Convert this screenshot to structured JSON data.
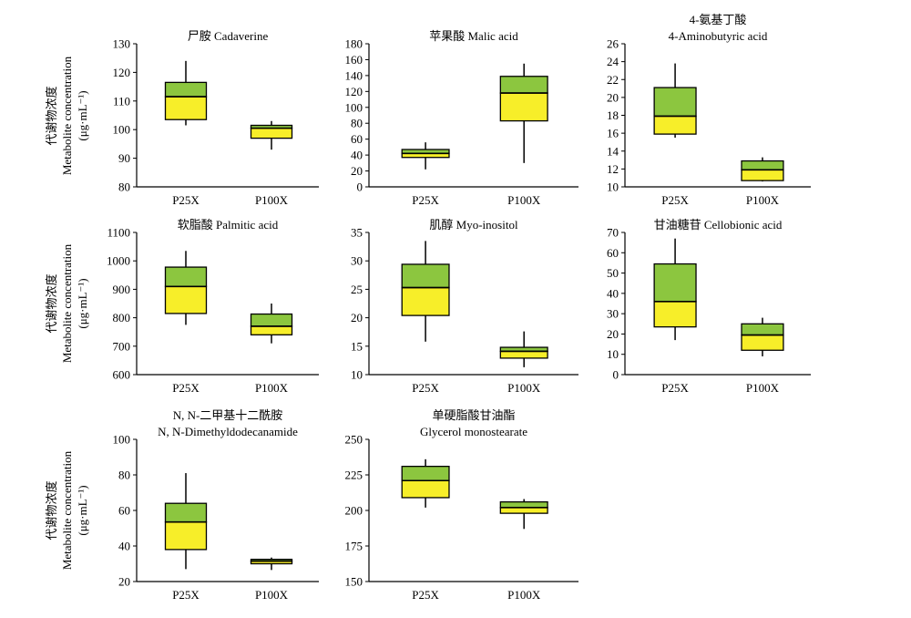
{
  "box_colors": {
    "upper": "#8cc63f",
    "lower": "#f7ee29",
    "whisker": "#000000"
  },
  "ylabel_cn": "代谢物浓度",
  "ylabel_en": "Metabolite concentration",
  "ylabel_unit": "(μg·mL⁻¹)",
  "chart_data": [
    {
      "type": "box",
      "title_lines": [
        "尸胺 Cadaverine"
      ],
      "categories": [
        "P25X",
        "P100X"
      ],
      "ylim": [
        80,
        130
      ],
      "yticks": [
        80,
        90,
        100,
        110,
        120,
        130
      ],
      "boxes": [
        {
          "min": 101.5,
          "q1": 103.5,
          "median": 111.5,
          "q3": 116.5,
          "max": 124
        },
        {
          "min": 93,
          "q1": 97,
          "median": 100.5,
          "q3": 101.5,
          "max": 103
        }
      ]
    },
    {
      "type": "box",
      "title_lines": [
        "苹果酸 Malic acid"
      ],
      "categories": [
        "P25X",
        "P100X"
      ],
      "ylim": [
        0,
        180
      ],
      "yticks": [
        0,
        20,
        40,
        60,
        80,
        100,
        120,
        140,
        160,
        180
      ],
      "boxes": [
        {
          "min": 22,
          "q1": 37,
          "median": 42,
          "q3": 47,
          "max": 56
        },
        {
          "min": 30,
          "q1": 83,
          "median": 118,
          "q3": 139,
          "max": 155
        }
      ]
    },
    {
      "type": "box",
      "title_lines": [
        "4-氨基丁酸",
        "4-Aminobutyric acid"
      ],
      "categories": [
        "P25X",
        "P100X"
      ],
      "ylim": [
        10,
        26
      ],
      "yticks": [
        10,
        12,
        14,
        16,
        18,
        20,
        22,
        24,
        26
      ],
      "boxes": [
        {
          "min": 15.5,
          "q1": 15.9,
          "median": 17.9,
          "q3": 21.1,
          "max": 23.8
        },
        {
          "min": 10.6,
          "q1": 10.7,
          "median": 11.9,
          "q3": 12.9,
          "max": 13.3
        }
      ]
    },
    {
      "type": "box",
      "title_lines": [
        "软脂酸 Palmitic acid"
      ],
      "categories": [
        "P25X",
        "P100X"
      ],
      "ylim": [
        600,
        1100
      ],
      "yticks": [
        600,
        700,
        800,
        900,
        1000,
        1100
      ],
      "boxes": [
        {
          "min": 775,
          "q1": 815,
          "median": 910,
          "q3": 978,
          "max": 1035
        },
        {
          "min": 710,
          "q1": 740,
          "median": 770,
          "q3": 813,
          "max": 850
        }
      ]
    },
    {
      "type": "box",
      "title_lines": [
        "肌醇 Myo-inositol"
      ],
      "categories": [
        "P25X",
        "P100X"
      ],
      "ylim": [
        10,
        35
      ],
      "yticks": [
        10,
        15,
        20,
        25,
        30,
        35
      ],
      "boxes": [
        {
          "min": 15.8,
          "q1": 20.4,
          "median": 25.3,
          "q3": 29.4,
          "max": 33.5
        },
        {
          "min": 11.3,
          "q1": 12.9,
          "median": 14.1,
          "q3": 14.8,
          "max": 17.6
        }
      ]
    },
    {
      "type": "box",
      "title_lines": [
        "甘油糖苷 Cellobionic acid"
      ],
      "categories": [
        "P25X",
        "P100X"
      ],
      "ylim": [
        0,
        70
      ],
      "yticks": [
        0,
        10,
        20,
        30,
        40,
        50,
        60,
        70
      ],
      "boxes": [
        {
          "min": 17,
          "q1": 23.5,
          "median": 36,
          "q3": 54.5,
          "max": 67
        },
        {
          "min": 9,
          "q1": 12,
          "median": 19.5,
          "q3": 25,
          "max": 28
        }
      ]
    },
    {
      "type": "box",
      "title_lines": [
        "N, N-二甲基十二酰胺",
        "N, N-Dimethyldodecanamide"
      ],
      "categories": [
        "P25X",
        "P100X"
      ],
      "ylim": [
        20,
        100
      ],
      "yticks": [
        20,
        40,
        60,
        80,
        100
      ],
      "boxes": [
        {
          "min": 27,
          "q1": 38,
          "median": 53.5,
          "q3": 64,
          "max": 81
        },
        {
          "min": 26.5,
          "q1": 30,
          "median": 31.5,
          "q3": 32.5,
          "max": 33.5
        }
      ]
    },
    {
      "type": "box",
      "title_lines": [
        "单硬脂酸甘油酯",
        "Glycerol monostearate"
      ],
      "categories": [
        "P25X",
        "P100X"
      ],
      "ylim": [
        150,
        250
      ],
      "yticks": [
        150,
        175,
        200,
        225,
        250
      ],
      "boxes": [
        {
          "min": 202,
          "q1": 209,
          "median": 221,
          "q3": 231,
          "max": 236
        },
        {
          "min": 187,
          "q1": 198,
          "median": 202,
          "q3": 206,
          "max": 208
        }
      ]
    }
  ]
}
